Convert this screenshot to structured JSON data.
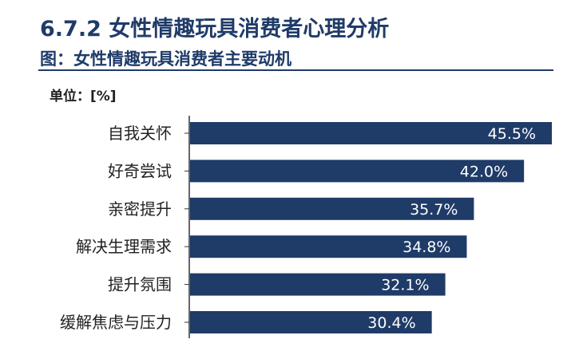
{
  "header": {
    "heading": "6.7.2 女性情趣玩具消费者心理分析",
    "subtitle": "图：女性情趣玩具消费者主要动机",
    "unit": "单位：[%]"
  },
  "colors": {
    "bar": "#1f3b68",
    "axis": "#333333"
  },
  "chart_data": {
    "type": "bar",
    "orientation": "horizontal",
    "categories": [
      "自我关怀",
      "好奇尝试",
      "亲密提升",
      "解决生理需求",
      "提升氛围",
      "缓解焦虑与压力"
    ],
    "values": [
      45.5,
      42.0,
      35.7,
      34.8,
      32.1,
      30.4
    ],
    "value_labels": [
      "45.5%",
      "42.0%",
      "35.7%",
      "34.8%",
      "32.1%",
      "30.4%"
    ],
    "xlim": [
      0,
      45.5
    ],
    "grid": false,
    "legend": "none"
  }
}
